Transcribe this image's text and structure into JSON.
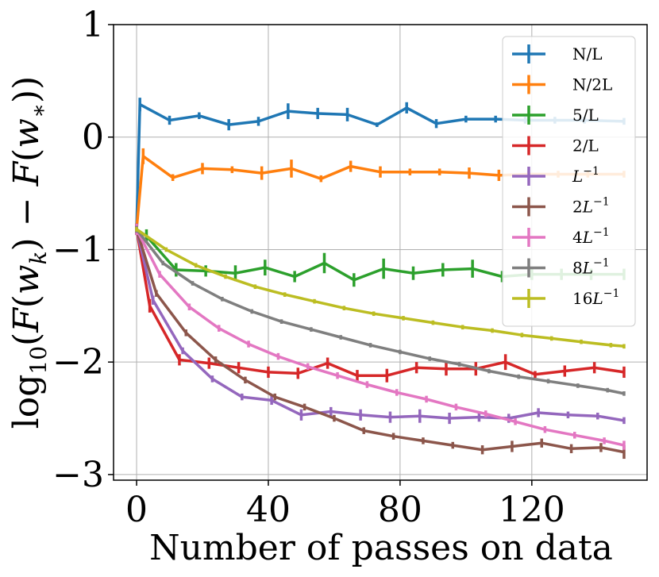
{
  "chart_data": {
    "type": "line",
    "title": "",
    "xlabel": "Number of passes on data",
    "ylabel": "log10(F(w_k) − F(w_*))",
    "xlim": [
      -7,
      155
    ],
    "ylim": [
      -3.05,
      1.0
    ],
    "xticks": [
      0,
      40,
      80,
      120
    ],
    "xtick_labels": [
      "0",
      "40",
      "80",
      "120"
    ],
    "yticks": [
      1,
      0,
      -1,
      -2,
      -3
    ],
    "ytick_labels": [
      "1",
      "0",
      "−1",
      "−2",
      "−3"
    ],
    "grid": true,
    "legend_position": "top-right",
    "series": [
      {
        "name": "N/L",
        "color": "#1f77b4",
        "points": [
          [
            0,
            -0.82
          ],
          [
            1,
            0.29
          ],
          [
            10,
            0.15
          ],
          [
            19,
            0.19
          ],
          [
            28,
            0.11
          ],
          [
            37,
            0.14
          ],
          [
            46,
            0.23
          ],
          [
            55,
            0.21
          ],
          [
            64,
            0.2
          ],
          [
            73,
            0.11
          ],
          [
            82,
            0.26
          ],
          [
            91,
            0.12
          ],
          [
            100,
            0.16
          ],
          [
            109,
            0.16
          ],
          [
            118,
            0.15
          ],
          [
            127,
            0.15
          ],
          [
            136,
            0.15
          ],
          [
            148,
            0.14
          ]
        ],
        "err": [
          0.05,
          0.06,
          0.04,
          0.03,
          0.05,
          0.04,
          0.07,
          0.05,
          0.06,
          0.02,
          0.05,
          0.04,
          0.03,
          0.03,
          0.03,
          0.03,
          0.03,
          0.03
        ]
      },
      {
        "name": "N/2L",
        "color": "#ff7f0e",
        "points": [
          [
            0,
            -0.82
          ],
          [
            2,
            -0.17
          ],
          [
            11,
            -0.36
          ],
          [
            20,
            -0.28
          ],
          [
            29,
            -0.29
          ],
          [
            38,
            -0.32
          ],
          [
            47,
            -0.28
          ],
          [
            56,
            -0.37
          ],
          [
            65,
            -0.26
          ],
          [
            74,
            -0.31
          ],
          [
            83,
            -0.31
          ],
          [
            92,
            -0.31
          ],
          [
            101,
            -0.32
          ],
          [
            110,
            -0.34
          ],
          [
            119,
            -0.33
          ],
          [
            128,
            -0.33
          ],
          [
            137,
            -0.33
          ],
          [
            148,
            -0.33
          ]
        ],
        "err": [
          0.05,
          0.07,
          0.03,
          0.05,
          0.03,
          0.06,
          0.08,
          0.03,
          0.05,
          0.05,
          0.03,
          0.03,
          0.05,
          0.05,
          0.03,
          0.03,
          0.03,
          0.03
        ]
      },
      {
        "name": "5/L",
        "color": "#2ca02c",
        "points": [
          [
            0,
            -0.82
          ],
          [
            3,
            -0.88
          ],
          [
            12,
            -1.18
          ],
          [
            21,
            -1.19
          ],
          [
            30,
            -1.21
          ],
          [
            39,
            -1.16
          ],
          [
            48,
            -1.24
          ],
          [
            57,
            -1.12
          ],
          [
            66,
            -1.27
          ],
          [
            75,
            -1.17
          ],
          [
            84,
            -1.21
          ],
          [
            93,
            -1.18
          ],
          [
            102,
            -1.17
          ],
          [
            111,
            -1.24
          ],
          [
            120,
            -1.22
          ],
          [
            129,
            -1.22
          ],
          [
            138,
            -1.22
          ],
          [
            148,
            -1.22
          ]
        ],
        "err": [
          0.05,
          0.06,
          0.06,
          0.05,
          0.07,
          0.07,
          0.05,
          0.09,
          0.06,
          0.09,
          0.06,
          0.06,
          0.08,
          0.05,
          0.05,
          0.05,
          0.05,
          0.05
        ]
      },
      {
        "name": "2/L",
        "color": "#d62728",
        "points": [
          [
            0,
            -0.82
          ],
          [
            4,
            -1.5
          ],
          [
            13,
            -1.98
          ],
          [
            22,
            -2.01
          ],
          [
            31,
            -2.05
          ],
          [
            40,
            -2.09
          ],
          [
            49,
            -2.1
          ],
          [
            58,
            -2.01
          ],
          [
            67,
            -2.12
          ],
          [
            76,
            -2.12
          ],
          [
            85,
            -2.05
          ],
          [
            94,
            -2.06
          ],
          [
            103,
            -2.06
          ],
          [
            112,
            -2.0
          ],
          [
            121,
            -2.11
          ],
          [
            130,
            -2.08
          ],
          [
            139,
            -2.05
          ],
          [
            148,
            -2.09
          ]
        ],
        "err": [
          0.05,
          0.06,
          0.05,
          0.05,
          0.05,
          0.05,
          0.05,
          0.05,
          0.05,
          0.06,
          0.05,
          0.06,
          0.06,
          0.07,
          0.03,
          0.05,
          0.05,
          0.05
        ]
      },
      {
        "name": "L^{-1}",
        "color": "#9467bd",
        "points": [
          [
            0,
            -0.82
          ],
          [
            5,
            -1.45
          ],
          [
            14,
            -1.9
          ],
          [
            23,
            -2.15
          ],
          [
            32,
            -2.31
          ],
          [
            41,
            -2.34
          ],
          [
            50,
            -2.47
          ],
          [
            59,
            -2.44
          ],
          [
            68,
            -2.47
          ],
          [
            77,
            -2.49
          ],
          [
            86,
            -2.48
          ],
          [
            95,
            -2.5
          ],
          [
            104,
            -2.49
          ],
          [
            113,
            -2.5
          ],
          [
            122,
            -2.45
          ],
          [
            131,
            -2.47
          ],
          [
            140,
            -2.48
          ],
          [
            148,
            -2.52
          ]
        ],
        "err": [
          0.05,
          0.04,
          0.03,
          0.03,
          0.03,
          0.04,
          0.05,
          0.04,
          0.05,
          0.05,
          0.06,
          0.05,
          0.04,
          0.04,
          0.04,
          0.03,
          0.03,
          0.03
        ]
      },
      {
        "name": "2L^{-1}",
        "color": "#8c564b",
        "points": [
          [
            0,
            -0.82
          ],
          [
            6,
            -1.39
          ],
          [
            15,
            -1.74
          ],
          [
            24,
            -1.98
          ],
          [
            33,
            -2.16
          ],
          [
            42,
            -2.31
          ],
          [
            51,
            -2.4
          ],
          [
            60,
            -2.5
          ],
          [
            69,
            -2.61
          ],
          [
            78,
            -2.66
          ],
          [
            87,
            -2.7
          ],
          [
            96,
            -2.74
          ],
          [
            105,
            -2.78
          ],
          [
            114,
            -2.75
          ],
          [
            123,
            -2.72
          ],
          [
            132,
            -2.77
          ],
          [
            141,
            -2.76
          ],
          [
            148,
            -2.8
          ]
        ],
        "err": [
          0.05,
          0.03,
          0.03,
          0.03,
          0.03,
          0.03,
          0.03,
          0.03,
          0.03,
          0.03,
          0.03,
          0.03,
          0.04,
          0.05,
          0.04,
          0.04,
          0.04,
          0.06
        ]
      },
      {
        "name": "4L^{-1}",
        "color": "#e377c2",
        "points": [
          [
            0,
            -0.82
          ],
          [
            7,
            -1.22
          ],
          [
            16,
            -1.51
          ],
          [
            25,
            -1.7
          ],
          [
            34,
            -1.84
          ],
          [
            43,
            -1.95
          ],
          [
            52,
            -2.04
          ],
          [
            61,
            -2.12
          ],
          [
            70,
            -2.2
          ],
          [
            79,
            -2.27
          ],
          [
            88,
            -2.33
          ],
          [
            97,
            -2.4
          ],
          [
            106,
            -2.46
          ],
          [
            115,
            -2.53
          ],
          [
            124,
            -2.6
          ],
          [
            133,
            -2.65
          ],
          [
            142,
            -2.7
          ],
          [
            148,
            -2.74
          ]
        ],
        "err": [
          0.05,
          0.03,
          0.03,
          0.03,
          0.03,
          0.03,
          0.03,
          0.03,
          0.03,
          0.03,
          0.03,
          0.03,
          0.03,
          0.03,
          0.03,
          0.03,
          0.03,
          0.04
        ]
      },
      {
        "name": "8L^{-1}",
        "color": "#7f7f7f",
        "points": [
          [
            0,
            -0.82
          ],
          [
            8,
            -1.12
          ],
          [
            17,
            -1.3
          ],
          [
            26,
            -1.44
          ],
          [
            35,
            -1.55
          ],
          [
            44,
            -1.64
          ],
          [
            53,
            -1.71
          ],
          [
            62,
            -1.78
          ],
          [
            71,
            -1.85
          ],
          [
            80,
            -1.91
          ],
          [
            89,
            -1.97
          ],
          [
            98,
            -2.02
          ],
          [
            107,
            -2.08
          ],
          [
            116,
            -2.13
          ],
          [
            125,
            -2.17
          ],
          [
            134,
            -2.21
          ],
          [
            143,
            -2.25
          ],
          [
            148,
            -2.28
          ]
        ],
        "err": [
          0.03,
          0.02,
          0.02,
          0.02,
          0.02,
          0.02,
          0.02,
          0.02,
          0.02,
          0.02,
          0.02,
          0.02,
          0.02,
          0.02,
          0.02,
          0.02,
          0.02,
          0.02
        ]
      },
      {
        "name": "16L^{-1}",
        "color": "#bcbd22",
        "points": [
          [
            0,
            -0.82
          ],
          [
            9,
            -1.0
          ],
          [
            18,
            -1.14
          ],
          [
            27,
            -1.24
          ],
          [
            36,
            -1.33
          ],
          [
            45,
            -1.4
          ],
          [
            54,
            -1.46
          ],
          [
            63,
            -1.52
          ],
          [
            72,
            -1.57
          ],
          [
            81,
            -1.61
          ],
          [
            90,
            -1.65
          ],
          [
            99,
            -1.69
          ],
          [
            108,
            -1.72
          ],
          [
            117,
            -1.76
          ],
          [
            126,
            -1.79
          ],
          [
            135,
            -1.82
          ],
          [
            144,
            -1.85
          ],
          [
            148,
            -1.86
          ]
        ],
        "err": [
          0.02,
          0.02,
          0.02,
          0.02,
          0.02,
          0.02,
          0.02,
          0.02,
          0.02,
          0.02,
          0.02,
          0.02,
          0.02,
          0.02,
          0.02,
          0.02,
          0.02,
          0.02
        ]
      }
    ]
  }
}
